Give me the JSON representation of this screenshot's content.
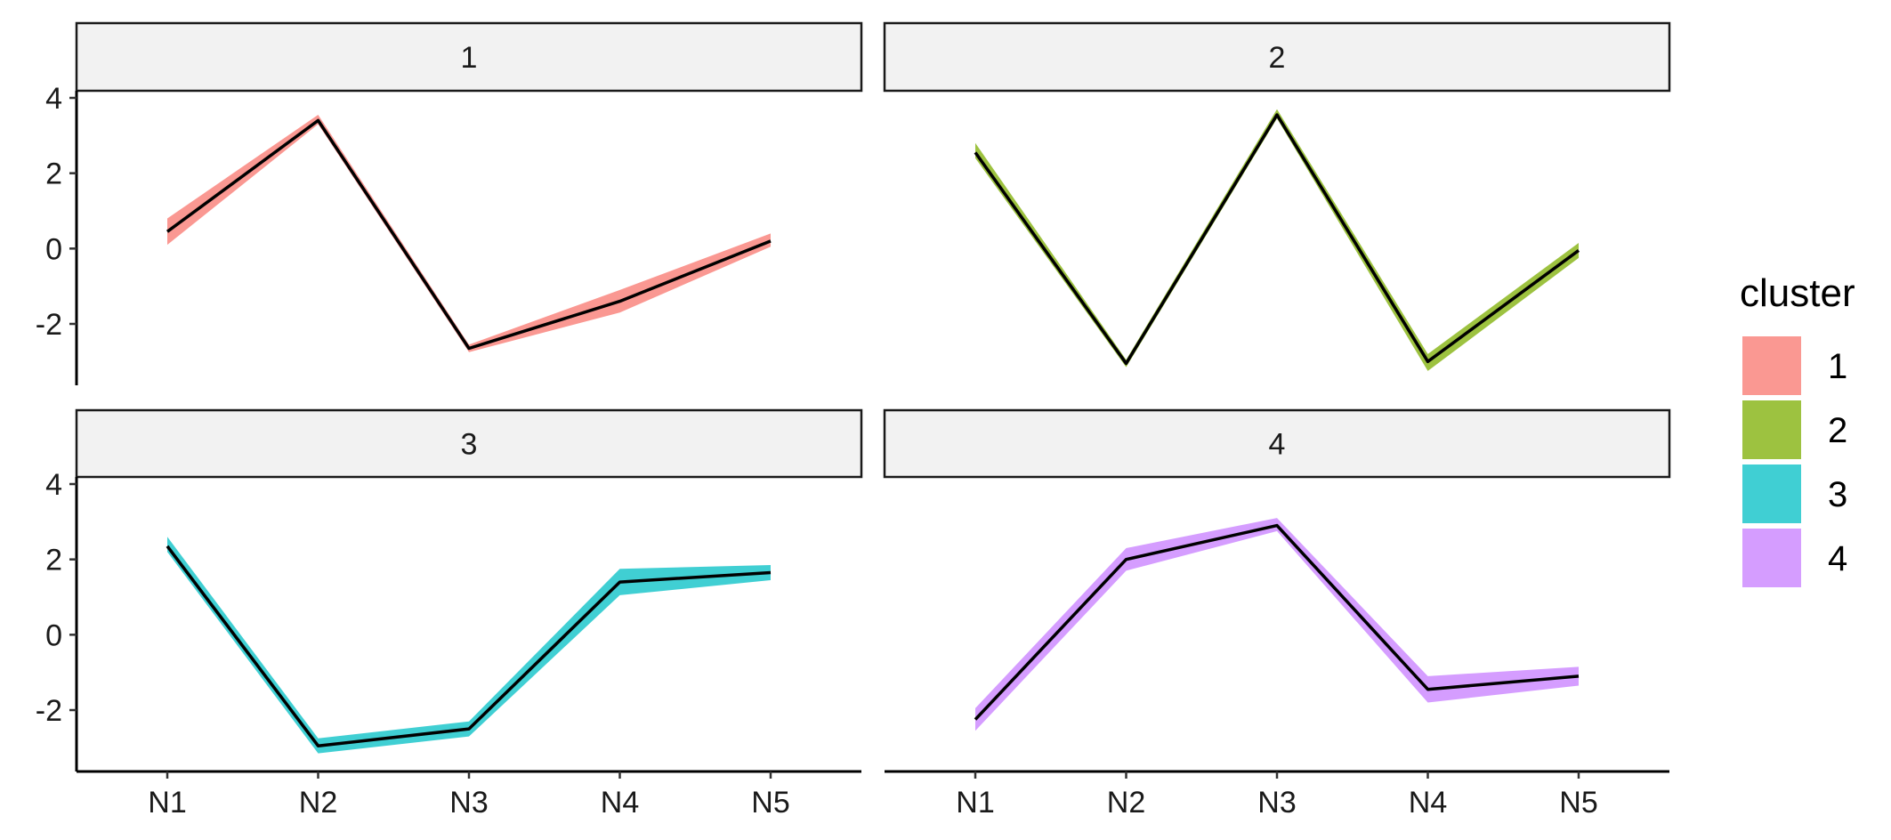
{
  "chart_data": {
    "type": "line",
    "facet_variable": "cluster",
    "x_categories": [
      "N1",
      "N2",
      "N3",
      "N4",
      "N5"
    ],
    "y_ticks": [
      -2,
      0,
      2,
      4
    ],
    "ylim": [
      -3.6,
      4.2
    ],
    "grid": false,
    "legend": {
      "title": "cluster",
      "placement": "right",
      "entries": [
        {
          "label": "1",
          "color": "#F8766D"
        },
        {
          "label": "2",
          "color": "#7CAE00"
        },
        {
          "label": "3",
          "color": "#00BFC4"
        },
        {
          "label": "4",
          "color": "#C77CFF"
        }
      ]
    },
    "panels": [
      {
        "strip_label": "1",
        "color": "#F8766D",
        "mean": [
          0.45,
          3.4,
          -2.65,
          -1.4,
          0.2
        ],
        "lower": [
          0.1,
          3.3,
          -2.75,
          -1.7,
          0.05
        ],
        "upper": [
          0.8,
          3.55,
          -2.55,
          -1.1,
          0.4
        ]
      },
      {
        "strip_label": "2",
        "color": "#7CAE00",
        "mean": [
          2.55,
          -3.05,
          3.55,
          -3.0,
          -0.05
        ],
        "lower": [
          2.4,
          -3.15,
          3.45,
          -3.25,
          -0.25
        ],
        "upper": [
          2.8,
          -2.95,
          3.7,
          -2.8,
          0.15
        ]
      },
      {
        "strip_label": "3",
        "color": "#00BFC4",
        "mean": [
          2.35,
          -2.95,
          -2.5,
          1.4,
          1.65
        ],
        "lower": [
          2.2,
          -3.15,
          -2.7,
          1.05,
          1.45
        ],
        "upper": [
          2.6,
          -2.75,
          -2.3,
          1.75,
          1.85
        ]
      },
      {
        "strip_label": "4",
        "color": "#C77CFF",
        "mean": [
          -2.25,
          2.0,
          2.9,
          -1.45,
          -1.1
        ],
        "lower": [
          -2.55,
          1.7,
          2.75,
          -1.8,
          -1.35
        ],
        "upper": [
          -1.95,
          2.3,
          3.1,
          -1.1,
          -0.85
        ]
      }
    ]
  }
}
